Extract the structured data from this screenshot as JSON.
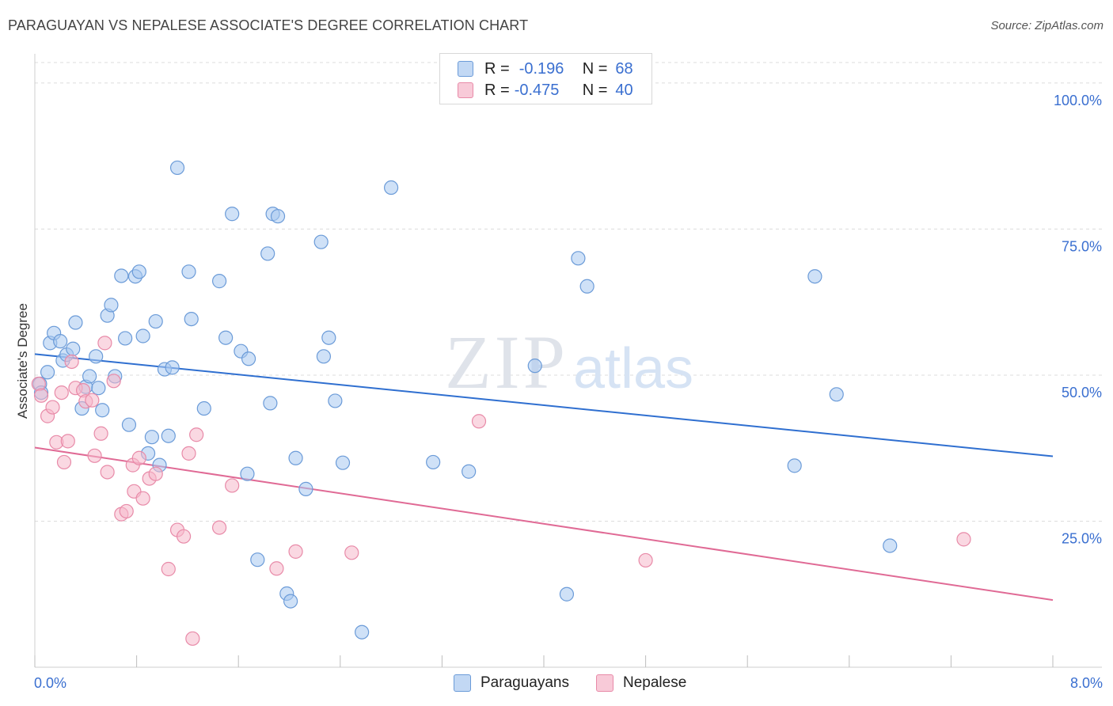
{
  "header": {
    "title": "PARAGUAYAN VS NEPALESE ASSOCIATE'S DEGREE CORRELATION CHART",
    "source": "Source: ZipAtlas.com"
  },
  "legend_stats": [
    {
      "r_label": "R =",
      "r_value": "-0.196",
      "n_label": "N =",
      "n_value": "68"
    },
    {
      "r_label": "R =",
      "r_value": "-0.475",
      "n_label": "N =",
      "n_value": "40"
    }
  ],
  "bottom_legend": [
    "Paraguayans",
    "Nepalese"
  ],
  "watermark": {
    "zip": "ZIP",
    "atlas": "atlas"
  },
  "colors": {
    "paraguayans_fill": "#a8c8f0",
    "paraguayans_stroke": "#6b9bd8",
    "paraguayans_line": "#2f6fd0",
    "nepalese_fill": "#f5b8cb",
    "nepalese_stroke": "#e88aa8",
    "nepalese_line": "#e06a95",
    "axis_text": "#3a6fd0"
  },
  "chart_data": {
    "type": "scatter",
    "title": "PARAGUAYAN VS NEPALESE ASSOCIATE'S DEGREE CORRELATION CHART",
    "xlabel": "",
    "ylabel": "Associate's Degree",
    "xlim": [
      0,
      8
    ],
    "ylim": [
      0,
      105
    ],
    "x_tick_labels": [
      "0.0%",
      "8.0%"
    ],
    "y_ticks": [
      25,
      50,
      75,
      100
    ],
    "y_tick_labels": [
      "25.0%",
      "50.0%",
      "75.0%",
      "100.0%"
    ],
    "grid": true,
    "legend_position": "top-center",
    "series": [
      {
        "name": "Paraguayans",
        "points": [
          [
            0.04,
            48.5
          ],
          [
            0.05,
            47.0
          ],
          [
            0.1,
            50.5
          ],
          [
            0.12,
            55.5
          ],
          [
            0.15,
            57.2
          ],
          [
            0.2,
            55.8
          ],
          [
            0.22,
            52.5
          ],
          [
            0.25,
            53.5
          ],
          [
            0.3,
            54.5
          ],
          [
            0.32,
            59.0
          ],
          [
            0.37,
            44.3
          ],
          [
            0.4,
            48.0
          ],
          [
            0.43,
            49.8
          ],
          [
            0.48,
            53.2
          ],
          [
            0.5,
            47.8
          ],
          [
            0.53,
            44.0
          ],
          [
            0.57,
            60.2
          ],
          [
            0.6,
            62.0
          ],
          [
            0.63,
            49.8
          ],
          [
            0.68,
            67.0
          ],
          [
            0.71,
            56.3
          ],
          [
            0.74,
            41.5
          ],
          [
            0.79,
            66.9
          ],
          [
            0.82,
            67.7
          ],
          [
            0.85,
            56.7
          ],
          [
            0.89,
            36.6
          ],
          [
            0.92,
            39.4
          ],
          [
            0.95,
            59.2
          ],
          [
            0.98,
            34.6
          ],
          [
            1.02,
            51.0
          ],
          [
            1.05,
            39.6
          ],
          [
            1.08,
            51.3
          ],
          [
            1.12,
            85.5
          ],
          [
            1.21,
            67.7
          ],
          [
            1.23,
            59.6
          ],
          [
            1.33,
            44.3
          ],
          [
            1.45,
            66.1
          ],
          [
            1.5,
            56.4
          ],
          [
            1.55,
            77.6
          ],
          [
            1.62,
            54.1
          ],
          [
            1.67,
            33.1
          ],
          [
            1.68,
            52.8
          ],
          [
            1.75,
            18.4
          ],
          [
            1.83,
            70.8
          ],
          [
            1.85,
            45.2
          ],
          [
            1.87,
            77.6
          ],
          [
            1.91,
            77.2
          ],
          [
            1.98,
            12.6
          ],
          [
            2.01,
            11.3
          ],
          [
            2.05,
            35.8
          ],
          [
            2.13,
            30.5
          ],
          [
            2.25,
            72.8
          ],
          [
            2.27,
            53.2
          ],
          [
            2.31,
            56.4
          ],
          [
            2.36,
            45.6
          ],
          [
            2.42,
            35.0
          ],
          [
            2.57,
            6.0
          ],
          [
            2.8,
            82.1
          ],
          [
            3.13,
            35.1
          ],
          [
            3.41,
            33.5
          ],
          [
            3.93,
            51.6
          ],
          [
            4.18,
            12.5
          ],
          [
            4.27,
            70.0
          ],
          [
            4.34,
            65.2
          ],
          [
            5.97,
            34.5
          ],
          [
            6.13,
            66.9
          ],
          [
            6.3,
            46.7
          ],
          [
            6.72,
            20.8
          ]
        ]
      },
      {
        "name": "Nepalese",
        "points": [
          [
            0.03,
            48.5
          ],
          [
            0.05,
            46.5
          ],
          [
            0.1,
            43.0
          ],
          [
            0.14,
            44.5
          ],
          [
            0.17,
            38.5
          ],
          [
            0.21,
            47.0
          ],
          [
            0.23,
            35.1
          ],
          [
            0.26,
            38.7
          ],
          [
            0.29,
            52.3
          ],
          [
            0.32,
            47.8
          ],
          [
            0.38,
            47.4
          ],
          [
            0.4,
            45.5
          ],
          [
            0.45,
            45.7
          ],
          [
            0.47,
            36.2
          ],
          [
            0.52,
            40.0
          ],
          [
            0.55,
            55.5
          ],
          [
            0.57,
            33.4
          ],
          [
            0.62,
            49.0
          ],
          [
            0.68,
            26.2
          ],
          [
            0.72,
            26.7
          ],
          [
            0.77,
            34.6
          ],
          [
            0.78,
            30.1
          ],
          [
            0.82,
            35.8
          ],
          [
            0.85,
            28.9
          ],
          [
            0.9,
            32.3
          ],
          [
            0.95,
            33.1
          ],
          [
            1.05,
            16.8
          ],
          [
            1.12,
            23.5
          ],
          [
            1.17,
            22.4
          ],
          [
            1.21,
            36.6
          ],
          [
            1.24,
            4.9
          ],
          [
            1.27,
            39.8
          ],
          [
            1.45,
            23.9
          ],
          [
            1.55,
            31.1
          ],
          [
            1.9,
            16.9
          ],
          [
            2.05,
            19.8
          ],
          [
            2.49,
            19.6
          ],
          [
            3.49,
            42.1
          ],
          [
            4.8,
            18.3
          ],
          [
            7.3,
            21.9
          ]
        ]
      }
    ],
    "trend_lines": [
      {
        "series": "Paraguayans",
        "x": [
          0,
          8
        ],
        "y": [
          53.6,
          36.1
        ]
      },
      {
        "series": "Nepalese",
        "x": [
          0,
          8
        ],
        "y": [
          37.6,
          11.5
        ]
      }
    ]
  }
}
